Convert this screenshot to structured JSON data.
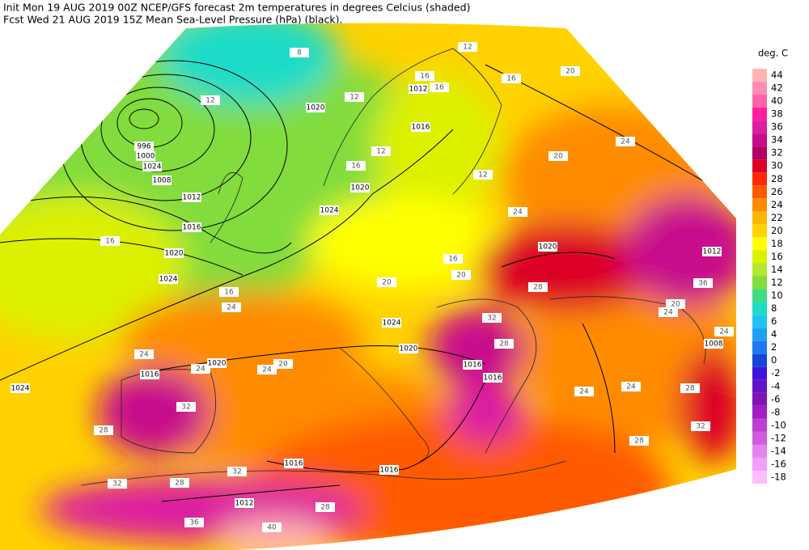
{
  "header": {
    "line1": "Init  Mon 19 AUG 2019 00Z  NCEP/GFS forecast 2m temperatures in degrees Celcius (shaded)",
    "line2": "Fcst Wed 21 AUG 2019 15Z  Mean Sea-Level Pressure (hPa) (black)."
  },
  "colorbar": {
    "title": "deg. C",
    "levels": [
      44,
      42,
      40,
      38,
      36,
      34,
      32,
      30,
      28,
      26,
      24,
      22,
      20,
      18,
      16,
      14,
      12,
      10,
      8,
      6,
      4,
      2,
      0,
      -2,
      -4,
      -6,
      -8,
      -10,
      -12,
      -14,
      -16,
      -18
    ],
    "colors": [
      "#ffb4b4",
      "#ff8cb4",
      "#ff64aa",
      "#ff1e9b",
      "#dc1ea0",
      "#c80a8c",
      "#b40064",
      "#dc0028",
      "#ff2800",
      "#ff5a00",
      "#ff8c00",
      "#ffb400",
      "#ffd200",
      "#ffff00",
      "#dcf000",
      "#b4e632",
      "#82dc3c",
      "#3cdc82",
      "#1edcc8",
      "#1ec3f0",
      "#1ea0f0",
      "#1e78f0",
      "#1446dc",
      "#3c14dc",
      "#6414c8",
      "#8214b4",
      "#a01ec3",
      "#be3cd2",
      "#d25ae1",
      "#e682f0",
      "#f0a0fa",
      "#ffbeff"
    ]
  },
  "map": {
    "isobar_labels": [
      996,
      1000,
      1024,
      1008,
      1012,
      1016,
      1020,
      1024,
      1024,
      1020,
      1016,
      1020,
      1016,
      1012,
      1020,
      1024,
      1020,
      1012,
      1008,
      1024,
      1020,
      1016,
      1016,
      1016,
      1016,
      1012
    ],
    "temperature_labels": [
      8,
      12,
      12,
      16,
      16,
      12,
      16,
      20,
      20,
      24,
      12,
      16,
      12,
      24,
      16,
      20,
      20,
      16,
      16,
      24,
      24,
      24,
      20,
      24,
      32,
      28,
      32,
      28,
      32,
      28,
      40,
      36,
      28,
      32,
      28,
      24,
      24,
      28,
      32,
      28,
      20,
      24,
      24,
      36
    ]
  }
}
